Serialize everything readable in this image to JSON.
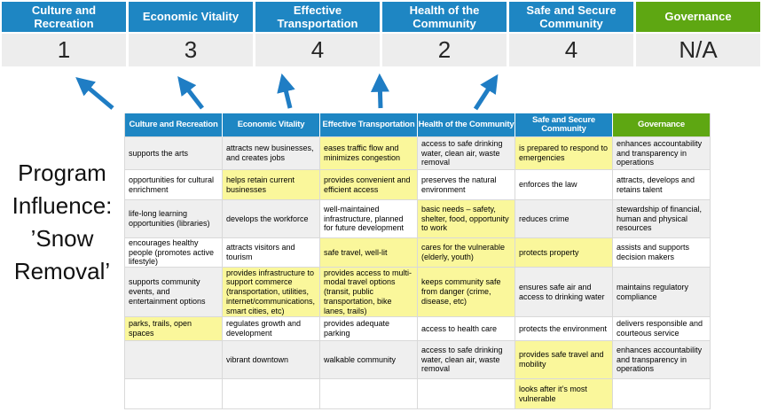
{
  "title": "Program\nInfluence:\n’Snow\nRemoval’",
  "colors": {
    "header_blue": "#1E86C3",
    "header_green": "#5EA712",
    "highlight_yellow": "#FAF79B",
    "band_gray": "#EFEFEF",
    "score_row_bg": "#EDEDED",
    "arrow_blue": "#1F7DC4"
  },
  "summary": {
    "columns": [
      {
        "label": "Culture and\nRecreation",
        "score": "1",
        "color": "blue"
      },
      {
        "label": "Economic Vitality",
        "score": "3",
        "color": "blue"
      },
      {
        "label": "Effective\nTransportation",
        "score": "4",
        "color": "blue"
      },
      {
        "label": "Health of the\nCommunity",
        "score": "2",
        "color": "blue"
      },
      {
        "label": "Safe and Secure\nCommunity",
        "score": "4",
        "color": "blue"
      },
      {
        "label": "Governance",
        "score": "N/A",
        "color": "green"
      }
    ]
  },
  "matrix": {
    "headers": [
      {
        "label": "Culture and Recreation",
        "color": "blue"
      },
      {
        "label": "Economic Vitality",
        "color": "blue"
      },
      {
        "label": "Effective Transportation",
        "color": "blue"
      },
      {
        "label": "Health of the Community",
        "color": "blue"
      },
      {
        "label": "Safe and Secure\nCommunity",
        "color": "blue"
      },
      {
        "label": "Governance",
        "color": "green"
      }
    ],
    "rows": [
      [
        {
          "text": "supports the arts",
          "bg": "gray"
        },
        {
          "text": "attracts new businesses, and creates jobs",
          "bg": "gray"
        },
        {
          "text": "eases traffic flow and minimizes congestion",
          "bg": "yellow"
        },
        {
          "text": "access to safe drinking water, clean air, waste removal",
          "bg": "gray"
        },
        {
          "text": "is prepared to respond to emergencies",
          "bg": "yellow"
        },
        {
          "text": "enhances accountability and transparency in operations",
          "bg": "gray"
        }
      ],
      [
        {
          "text": "opportunities for cultural enrichment",
          "bg": "white"
        },
        {
          "text": "helps retain current businesses",
          "bg": "yellow"
        },
        {
          "text": "provides convenient and efficient access",
          "bg": "yellow"
        },
        {
          "text": "preserves the natural environment",
          "bg": "white"
        },
        {
          "text": "enforces the law",
          "bg": "white"
        },
        {
          "text": "attracts, develops and retains talent",
          "bg": "white"
        }
      ],
      [
        {
          "text": "life-long learning opportunities (libraries)",
          "bg": "gray"
        },
        {
          "text": "develops the workforce",
          "bg": "gray"
        },
        {
          "text": "well-maintained infrastructure, planned for future development",
          "bg": "white"
        },
        {
          "text": "basic needs – safety, shelter, food, opportunity to work",
          "bg": "yellow"
        },
        {
          "text": "reduces crime",
          "bg": "gray"
        },
        {
          "text": "stewardship of financial, human and physical resources",
          "bg": "gray"
        }
      ],
      [
        {
          "text": "encourages healthy people (promotes active lifestyle)",
          "bg": "white"
        },
        {
          "text": "attracts visitors and tourism",
          "bg": "white"
        },
        {
          "text": "safe travel, well-lit",
          "bg": "yellow"
        },
        {
          "text": "cares for the vulnerable (elderly, youth)",
          "bg": "yellow"
        },
        {
          "text": "protects property",
          "bg": "yellow"
        },
        {
          "text": "assists and supports decision makers",
          "bg": "white"
        }
      ],
      [
        {
          "text": "supports community events, and entertainment options",
          "bg": "gray"
        },
        {
          "text": "provides infrastructure to support commerce (transportation, utilities, internet/communications, smart cities, etc)",
          "bg": "yellow"
        },
        {
          "text": "provides access to multi-modal travel options (transit, public transportation, bike lanes, trails)",
          "bg": "yellow"
        },
        {
          "text": "keeps community safe from danger (crime, disease, etc)",
          "bg": "yellow"
        },
        {
          "text": "ensures safe air and access to drinking water",
          "bg": "gray"
        },
        {
          "text": "maintains regulatory compliance",
          "bg": "gray"
        }
      ],
      [
        {
          "text": "parks, trails, open spaces",
          "bg": "yellow"
        },
        {
          "text": "regulates growth and development",
          "bg": "white"
        },
        {
          "text": "provides adequate parking",
          "bg": "white"
        },
        {
          "text": "access to health care",
          "bg": "white"
        },
        {
          "text": "protects the environment",
          "bg": "white"
        },
        {
          "text": "delivers responsible and courteous service",
          "bg": "white"
        }
      ],
      [
        {
          "text": "",
          "bg": "gray"
        },
        {
          "text": "vibrant downtown",
          "bg": "gray"
        },
        {
          "text": "walkable community",
          "bg": "gray"
        },
        {
          "text": "access to safe drinking water, clean air, waste removal",
          "bg": "gray"
        },
        {
          "text": "provides safe travel and mobility",
          "bg": "yellow"
        },
        {
          "text": "enhances accountability and transparency in operations",
          "bg": "gray"
        }
      ],
      [
        {
          "text": "",
          "bg": "white"
        },
        {
          "text": "",
          "bg": "white"
        },
        {
          "text": "",
          "bg": "white"
        },
        {
          "text": "",
          "bg": "white"
        },
        {
          "text": "looks after it’s most vulnerable",
          "bg": "yellow"
        },
        {
          "text": "",
          "bg": "white"
        }
      ]
    ]
  }
}
